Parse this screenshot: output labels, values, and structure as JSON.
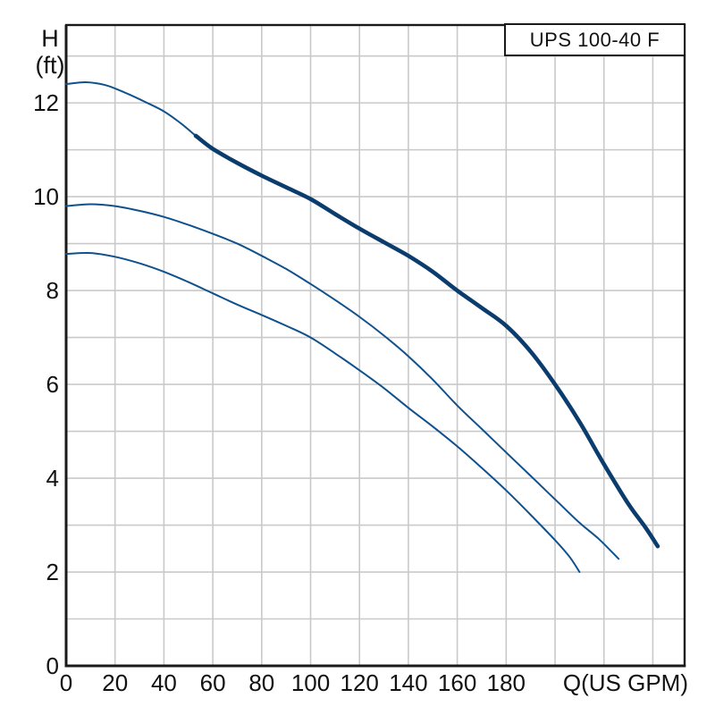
{
  "title_box": {
    "label": "UPS 100-40 F"
  },
  "axes": {
    "y_title_line1": "H",
    "y_title_line2": "(ft)",
    "x_label": "Q(US GPM)",
    "y_ticks": [
      0,
      2,
      4,
      6,
      8,
      10,
      12
    ],
    "x_ticks": [
      0,
      20,
      40,
      60,
      80,
      100,
      120,
      140,
      160,
      180
    ]
  },
  "chart_data": {
    "type": "line",
    "title": "UPS 100-40 F",
    "xlabel": "Q(US GPM)",
    "ylabel": "H (ft)",
    "xlim": [
      0,
      253
    ],
    "ylim": [
      0,
      13.66
    ],
    "x_grid_step": 20,
    "x_grid_max": 240,
    "y_grid_step": 1,
    "y_grid_max": 13,
    "grid": true,
    "legend_position": "none",
    "line_color": "#10518d",
    "line_color_bold": "#0b3c6e",
    "grid_color": "#c9c9c9",
    "border_color": "#1a1a1a",
    "series": [
      {
        "name": "curve-max-speed",
        "emphasis_from_q": 53,
        "points": [
          [
            0,
            12.4
          ],
          [
            8,
            12.44
          ],
          [
            16,
            12.38
          ],
          [
            24,
            12.22
          ],
          [
            32,
            12.03
          ],
          [
            40,
            11.82
          ],
          [
            47,
            11.56
          ],
          [
            53,
            11.3
          ],
          [
            60,
            11.02
          ],
          [
            70,
            10.72
          ],
          [
            80,
            10.45
          ],
          [
            90,
            10.2
          ],
          [
            100,
            9.95
          ],
          [
            110,
            9.63
          ],
          [
            120,
            9.32
          ],
          [
            130,
            9.03
          ],
          [
            140,
            8.74
          ],
          [
            150,
            8.4
          ],
          [
            160,
            8.0
          ],
          [
            170,
            7.63
          ],
          [
            180,
            7.25
          ],
          [
            190,
            6.7
          ],
          [
            200,
            6.0
          ],
          [
            210,
            5.2
          ],
          [
            220,
            4.3
          ],
          [
            230,
            3.45
          ],
          [
            237,
            2.95
          ],
          [
            242,
            2.55
          ]
        ]
      },
      {
        "name": "curve-mid-speed",
        "points": [
          [
            0,
            9.8
          ],
          [
            10,
            9.84
          ],
          [
            20,
            9.8
          ],
          [
            30,
            9.7
          ],
          [
            40,
            9.57
          ],
          [
            50,
            9.4
          ],
          [
            60,
            9.21
          ],
          [
            70,
            9.0
          ],
          [
            80,
            8.74
          ],
          [
            90,
            8.46
          ],
          [
            100,
            8.14
          ],
          [
            110,
            7.8
          ],
          [
            120,
            7.44
          ],
          [
            130,
            7.04
          ],
          [
            140,
            6.6
          ],
          [
            150,
            6.1
          ],
          [
            160,
            5.55
          ],
          [
            170,
            5.05
          ],
          [
            180,
            4.55
          ],
          [
            190,
            4.05
          ],
          [
            200,
            3.55
          ],
          [
            210,
            3.05
          ],
          [
            218,
            2.7
          ],
          [
            226,
            2.28
          ]
        ]
      },
      {
        "name": "curve-min-speed",
        "points": [
          [
            0,
            8.78
          ],
          [
            10,
            8.8
          ],
          [
            20,
            8.72
          ],
          [
            30,
            8.58
          ],
          [
            40,
            8.4
          ],
          [
            50,
            8.18
          ],
          [
            60,
            7.94
          ],
          [
            70,
            7.7
          ],
          [
            80,
            7.48
          ],
          [
            90,
            7.25
          ],
          [
            100,
            7.0
          ],
          [
            110,
            6.66
          ],
          [
            120,
            6.3
          ],
          [
            130,
            5.92
          ],
          [
            140,
            5.5
          ],
          [
            150,
            5.1
          ],
          [
            160,
            4.68
          ],
          [
            170,
            4.22
          ],
          [
            180,
            3.74
          ],
          [
            190,
            3.22
          ],
          [
            200,
            2.68
          ],
          [
            206,
            2.32
          ],
          [
            210,
            2.0
          ]
        ]
      }
    ]
  }
}
